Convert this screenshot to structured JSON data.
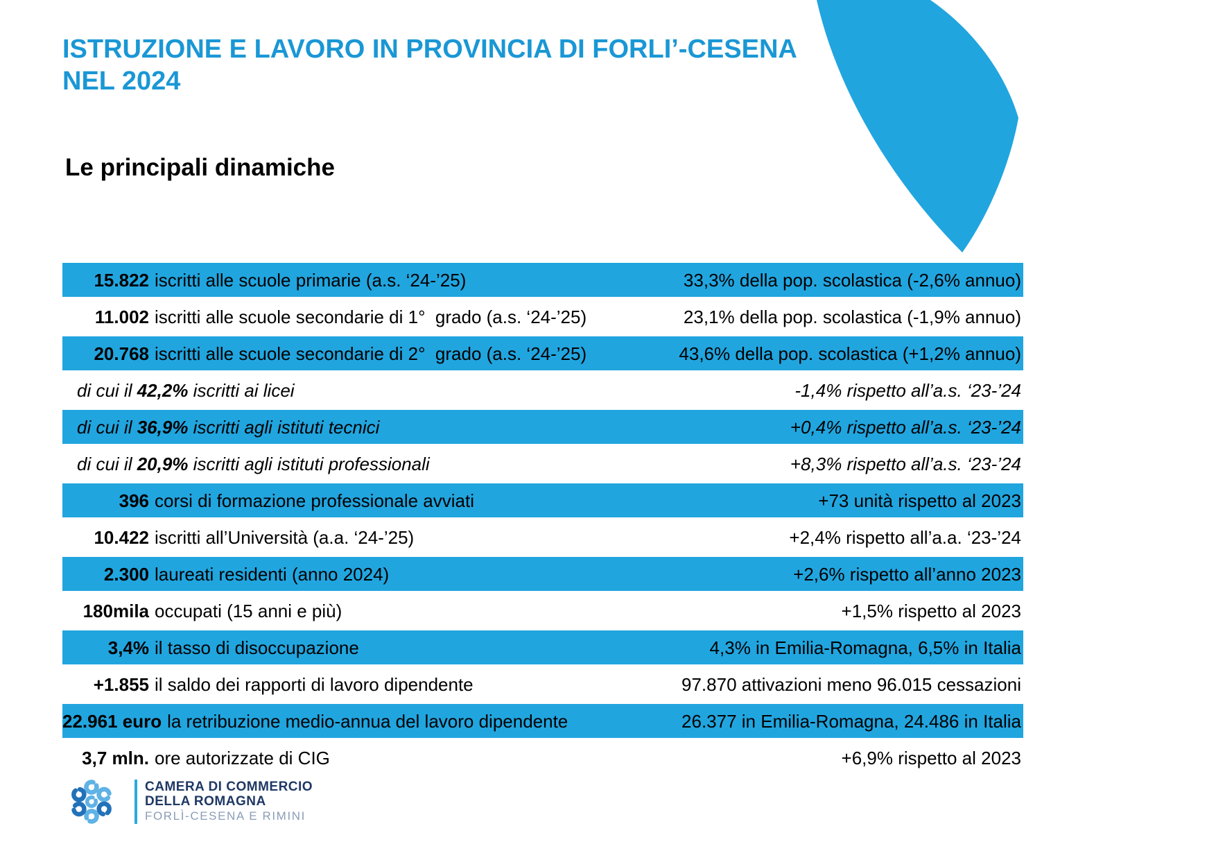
{
  "slide": {
    "title_line1": "ISTRUZIONE E LAVORO IN PROVINCIA DI FORLI’-CESENA",
    "title_line2": "NEL 2024",
    "subtitle": "Le principali dinamiche"
  },
  "colors": {
    "accent_blue": "#21A5DF",
    "title_blue": "#1A97D5",
    "logo_navy": "#1F3864",
    "logo_muted_blue": "#8A9DB8",
    "logo_light_blue": "#5FB2E5",
    "logo_dark_blue": "#2272B9",
    "logo_bar_blue": "#29A9E0",
    "row_text": "#000000"
  },
  "table": {
    "rows": [
      {
        "style": "blue",
        "sub": false,
        "value": "15.822",
        "label": "iscritti alle scuole primarie (a.s. ‘24-’25)",
        "right": "33,3% della pop. scolastica (-2,6% annuo)"
      },
      {
        "style": "white",
        "sub": false,
        "value": "11.002",
        "label": "iscritti alle scuole secondarie di 1°  grado (a.s. ‘24-’25)",
        "right": "23,1% della pop. scolastica (-1,9% annuo)"
      },
      {
        "style": "blue",
        "sub": false,
        "value": "20.768",
        "label": "iscritti alle scuole secondarie di 2°  grado (a.s. ‘24-’25)",
        "right": "43,6% della pop. scolastica (+1,2% annuo)"
      },
      {
        "style": "white",
        "sub": true,
        "prefix": "di cui il",
        "value": "42,2%",
        "label": "iscritti ai licei",
        "right": "-1,4% rispetto all’a.s. ‘23-’24"
      },
      {
        "style": "blue",
        "sub": true,
        "prefix": "di cui il",
        "value": "36,9%",
        "label": "iscritti agli istituti tecnici",
        "right": "+0,4% rispetto all’a.s. ‘23-’24"
      },
      {
        "style": "white",
        "sub": true,
        "prefix": "di cui il",
        "value": "20,9%",
        "label": "iscritti agli istituti professionali",
        "right": "+8,3% rispetto all’a.s. ‘23-’24"
      },
      {
        "style": "blue",
        "sub": false,
        "value": "396",
        "label": "corsi di formazione professionale avviati",
        "right": "+73 unità rispetto al 2023"
      },
      {
        "style": "white",
        "sub": false,
        "value": "10.422",
        "label": "iscritti all’Università (a.a. ‘24-’25)",
        "right": "+2,4% rispetto all’a.a. ‘23-’24"
      },
      {
        "style": "blue",
        "sub": false,
        "value": "2.300",
        "label": "laureati residenti (anno 2024)",
        "right": "+2,6% rispetto all’anno 2023"
      },
      {
        "style": "white",
        "sub": false,
        "value": "180mila",
        "label": "occupati (15 anni e più)",
        "right": "+1,5% rispetto al 2023"
      },
      {
        "style": "blue",
        "sub": false,
        "value": "3,4%",
        "label": "il tasso di disoccupazione",
        "right": "4,3% in Emilia-Romagna, 6,5% in Italia"
      },
      {
        "style": "white",
        "sub": false,
        "value": "+1.855",
        "label": "il saldo dei rapporti di lavoro dipendente",
        "right": "97.870 attivazioni meno 96.015 cessazioni"
      },
      {
        "style": "blue",
        "sub": false,
        "value": "22.961 euro",
        "label": "la retribuzione medio-annua del lavoro dipendente",
        "right": "26.377 in Emilia-Romagna, 24.486 in Italia"
      },
      {
        "style": "white",
        "sub": false,
        "value": "3,7 mln.",
        "label": "ore autorizzate di CIG",
        "right": "+6,9% rispetto al 2023"
      }
    ]
  },
  "footer": {
    "org_line1": "CAMERA DI COMMERCIO",
    "org_line2": "DELLA ROMAGNA",
    "org_line3": "FORLÌ-CESENA E RIMINI"
  }
}
